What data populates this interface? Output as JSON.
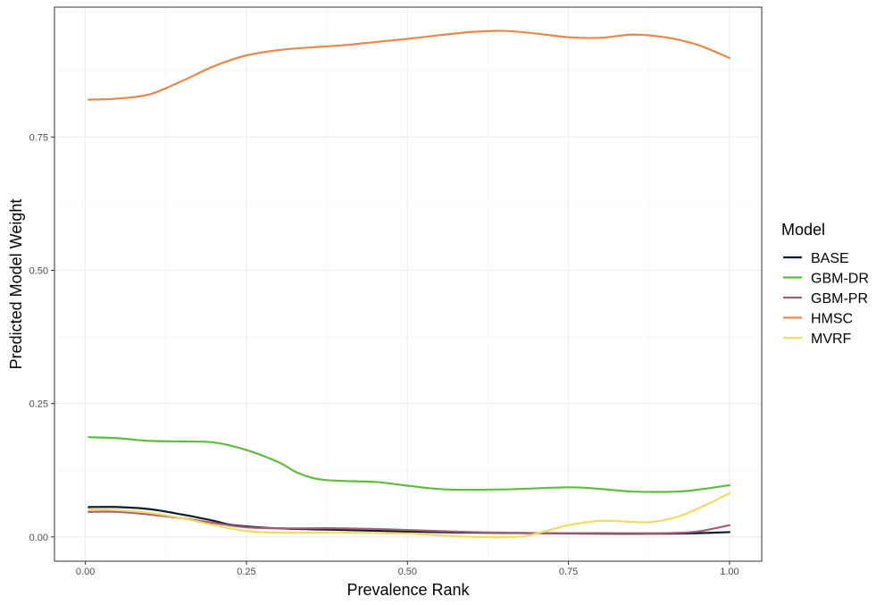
{
  "chart_data": {
    "type": "line",
    "xlabel": "Prevalence Rank",
    "ylabel": "Predicted Model Weight",
    "xlim": [
      -0.048,
      1.05
    ],
    "ylim": [
      -0.0456,
      0.9935
    ],
    "x_ticks": [
      {
        "value": 0.0,
        "label": "0.00"
      },
      {
        "value": 0.25,
        "label": "0.25"
      },
      {
        "value": 0.5,
        "label": "0.50"
      },
      {
        "value": 0.75,
        "label": "0.75"
      },
      {
        "value": 1.0,
        "label": "1.00"
      }
    ],
    "y_ticks": [
      {
        "value": 0.0,
        "label": "0.00"
      },
      {
        "value": 0.25,
        "label": "0.25"
      },
      {
        "value": 0.5,
        "label": "0.50"
      },
      {
        "value": 0.75,
        "label": "0.75"
      }
    ],
    "grid": true,
    "legend": {
      "title": "Model",
      "position": "right"
    },
    "series": [
      {
        "name": "BASE",
        "color": "#0d1b2a",
        "points": [
          [
            0.005,
            0.056
          ],
          [
            0.05,
            0.056
          ],
          [
            0.1,
            0.052
          ],
          [
            0.15,
            0.042
          ],
          [
            0.2,
            0.03
          ],
          [
            0.23,
            0.022
          ],
          [
            0.3,
            0.016
          ],
          [
            0.4,
            0.013
          ],
          [
            0.5,
            0.01
          ],
          [
            0.6,
            0.008
          ],
          [
            0.7,
            0.007
          ],
          [
            0.8,
            0.006
          ],
          [
            0.9,
            0.006
          ],
          [
            0.95,
            0.007
          ],
          [
            1.0,
            0.009
          ]
        ]
      },
      {
        "name": "GBM-DR",
        "color": "#5ebd3e",
        "points": [
          [
            0.005,
            0.187
          ],
          [
            0.05,
            0.185
          ],
          [
            0.1,
            0.18
          ],
          [
            0.15,
            0.179
          ],
          [
            0.2,
            0.177
          ],
          [
            0.25,
            0.163
          ],
          [
            0.3,
            0.14
          ],
          [
            0.33,
            0.12
          ],
          [
            0.37,
            0.107
          ],
          [
            0.45,
            0.103
          ],
          [
            0.5,
            0.096
          ],
          [
            0.56,
            0.089
          ],
          [
            0.65,
            0.089
          ],
          [
            0.75,
            0.093
          ],
          [
            0.8,
            0.09
          ],
          [
            0.85,
            0.085
          ],
          [
            0.92,
            0.085
          ],
          [
            0.96,
            0.09
          ],
          [
            1.0,
            0.097
          ]
        ]
      },
      {
        "name": "GBM-PR",
        "color": "#a0607a",
        "points": [
          [
            0.005,
            0.047
          ],
          [
            0.05,
            0.047
          ],
          [
            0.1,
            0.042
          ],
          [
            0.15,
            0.035
          ],
          [
            0.2,
            0.026
          ],
          [
            0.25,
            0.018
          ],
          [
            0.3,
            0.016
          ],
          [
            0.4,
            0.016
          ],
          [
            0.5,
            0.013
          ],
          [
            0.6,
            0.009
          ],
          [
            0.7,
            0.007
          ],
          [
            0.8,
            0.007
          ],
          [
            0.9,
            0.007
          ],
          [
            0.95,
            0.01
          ],
          [
            1.0,
            0.022
          ]
        ]
      },
      {
        "name": "HMSC",
        "color": "#e8894a",
        "points": [
          [
            0.005,
            0.82
          ],
          [
            0.05,
            0.822
          ],
          [
            0.1,
            0.83
          ],
          [
            0.15,
            0.855
          ],
          [
            0.2,
            0.883
          ],
          [
            0.25,
            0.903
          ],
          [
            0.3,
            0.913
          ],
          [
            0.35,
            0.918
          ],
          [
            0.4,
            0.922
          ],
          [
            0.45,
            0.928
          ],
          [
            0.5,
            0.934
          ],
          [
            0.55,
            0.941
          ],
          [
            0.6,
            0.947
          ],
          [
            0.65,
            0.949
          ],
          [
            0.7,
            0.944
          ],
          [
            0.75,
            0.937
          ],
          [
            0.8,
            0.936
          ],
          [
            0.85,
            0.942
          ],
          [
            0.9,
            0.937
          ],
          [
            0.95,
            0.923
          ],
          [
            1.0,
            0.898
          ]
        ]
      },
      {
        "name": "MVRF",
        "color": "#f2dc5d",
        "points": [
          [
            0.005,
            0.052
          ],
          [
            0.05,
            0.05
          ],
          [
            0.1,
            0.045
          ],
          [
            0.15,
            0.035
          ],
          [
            0.2,
            0.022
          ],
          [
            0.25,
            0.011
          ],
          [
            0.3,
            0.008
          ],
          [
            0.4,
            0.008
          ],
          [
            0.5,
            0.006
          ],
          [
            0.55,
            0.003
          ],
          [
            0.6,
            0.0
          ],
          [
            0.67,
            0.0
          ],
          [
            0.7,
            0.006
          ],
          [
            0.75,
            0.022
          ],
          [
            0.8,
            0.03
          ],
          [
            0.85,
            0.028
          ],
          [
            0.88,
            0.028
          ],
          [
            0.92,
            0.038
          ],
          [
            0.96,
            0.058
          ],
          [
            1.0,
            0.082
          ]
        ]
      }
    ]
  }
}
